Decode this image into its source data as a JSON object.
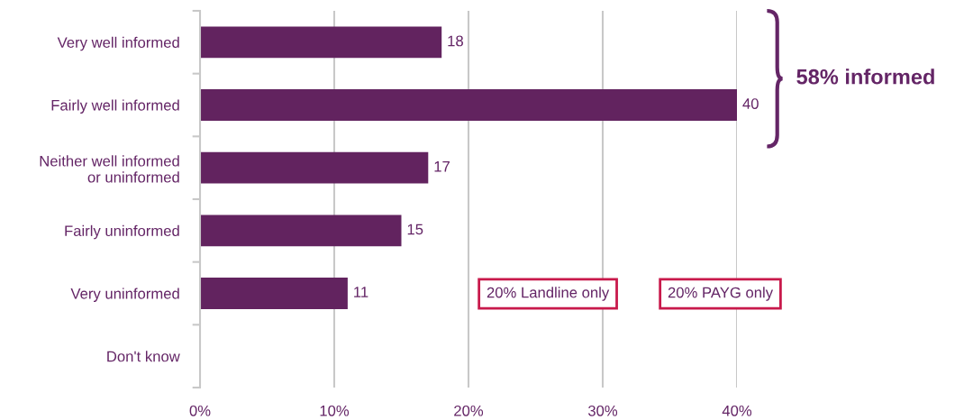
{
  "chart_data": {
    "type": "bar",
    "orientation": "horizontal",
    "categories": [
      "Very well informed",
      "Fairly well informed",
      "Neither well informed\nor uninformed",
      "Fairly uninformed",
      "Very uninformed",
      "Don't know"
    ],
    "values": [
      18,
      40,
      17,
      15,
      11,
      null
    ],
    "color": "#62235f",
    "xlim": [
      0,
      40
    ],
    "xticks": [
      {
        "value": 0,
        "label": "0%"
      },
      {
        "value": 10,
        "label": "10%"
      },
      {
        "value": 20,
        "label": "20%"
      },
      {
        "value": 30,
        "label": "30%"
      },
      {
        "value": 40,
        "label": "40%"
      }
    ],
    "grid": "x",
    "data_labels": true,
    "annotations": [
      "58% informed",
      "20% Landline only",
      "20% PAYG only"
    ]
  }
}
